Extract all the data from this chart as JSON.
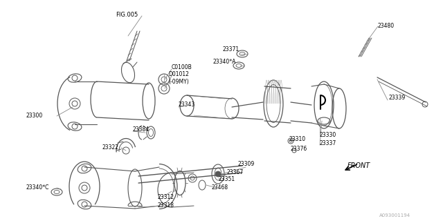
{
  "bg_color": "#ffffff",
  "line_color": "#555555",
  "text_color": "#000000",
  "footer_text": "A093001194",
  "labels": [
    [
      "FIG.005",
      183,
      22,
      6.0,
      "center"
    ],
    [
      "C0100B",
      248,
      97,
      5.5,
      "left"
    ],
    [
      "D01012",
      243,
      108,
      5.5,
      "left"
    ],
    [
      "(-09MY)",
      243,
      119,
      5.5,
      "left"
    ],
    [
      "23300",
      38,
      168,
      5.5,
      "left"
    ],
    [
      "23384",
      192,
      188,
      5.5,
      "left"
    ],
    [
      "23322",
      148,
      214,
      5.5,
      "left"
    ],
    [
      "23343",
      258,
      152,
      5.5,
      "left"
    ],
    [
      "23371",
      322,
      72,
      5.5,
      "left"
    ],
    [
      "23340*A",
      307,
      90,
      5.5,
      "left"
    ],
    [
      "23309",
      343,
      238,
      5.5,
      "left"
    ],
    [
      "23367",
      328,
      250,
      5.5,
      "left"
    ],
    [
      "23351",
      316,
      260,
      5.5,
      "left"
    ],
    [
      "23468",
      305,
      271,
      5.5,
      "left"
    ],
    [
      "23312",
      228,
      285,
      5.5,
      "left"
    ],
    [
      "23318",
      228,
      298,
      5.5,
      "left"
    ],
    [
      "23340*C",
      38,
      272,
      5.5,
      "left"
    ],
    [
      "23310",
      418,
      202,
      5.5,
      "left"
    ],
    [
      "23376",
      420,
      216,
      5.5,
      "left"
    ],
    [
      "23330",
      462,
      195,
      5.5,
      "left"
    ],
    [
      "23337",
      462,
      208,
      5.5,
      "left"
    ],
    [
      "23339",
      562,
      142,
      5.5,
      "left"
    ],
    [
      "23480",
      545,
      38,
      5.5,
      "left"
    ],
    [
      "FRONT",
      502,
      240,
      7.0,
      "left"
    ]
  ]
}
